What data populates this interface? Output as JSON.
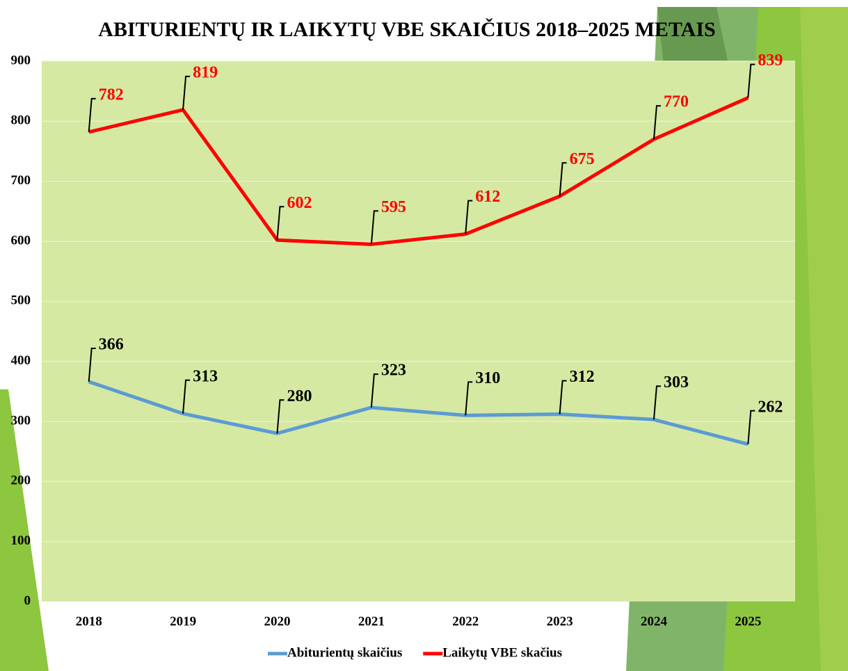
{
  "chart_data": {
    "type": "line",
    "title": "ABITURIENTŲ IR LAIKYTŲ VBE SKAIČIUS 2018–2025 METAIS",
    "categories": [
      "2018",
      "2019",
      "2020",
      "2021",
      "2022",
      "2023",
      "2024",
      "2025"
    ],
    "series": [
      {
        "name": "Abiturientų skaičius",
        "color": "#5b9bd5",
        "values": [
          366,
          313,
          280,
          323,
          310,
          312,
          303,
          262
        ]
      },
      {
        "name": "Laikytų VBE skačius",
        "color": "#ff0000",
        "values": [
          782,
          819,
          602,
          595,
          612,
          675,
          770,
          839
        ]
      }
    ],
    "ylim": [
      0,
      900
    ],
    "yticks": [
      0,
      100,
      200,
      300,
      400,
      500,
      600,
      700,
      800,
      900
    ],
    "grid": true,
    "legend": "bottom"
  }
}
